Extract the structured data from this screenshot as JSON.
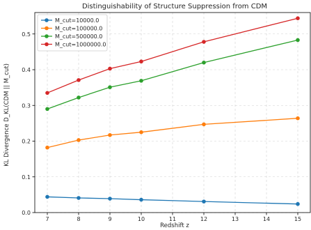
{
  "chart_data": {
    "type": "line",
    "title": "Distinguishability of Structure Suppression from CDM",
    "xlabel": "Redshift z",
    "ylabel": "KL Divergence D_KL(CDM || M_cut)",
    "xlim": [
      6.6,
      15.4
    ],
    "ylim": [
      0.0,
      0.56
    ],
    "xticks": [
      7,
      8,
      9,
      10,
      11,
      12,
      13,
      14,
      15
    ],
    "yticks": [
      0.0,
      0.1,
      0.2,
      0.3,
      0.4,
      0.5
    ],
    "ytick_labels": [
      "0.0",
      "0.1",
      "0.2",
      "0.3",
      "0.4",
      "0.5"
    ],
    "grid": true,
    "legend_position": "top-left",
    "x": [
      7,
      8,
      9,
      10,
      12,
      15
    ],
    "series": [
      {
        "name": "M_cut=10000.0",
        "color": "#1f77b4",
        "values": [
          0.044,
          0.041,
          0.039,
          0.036,
          0.031,
          0.024
        ]
      },
      {
        "name": "M_cut=100000.0",
        "color": "#ff7f0e",
        "values": [
          0.182,
          0.203,
          0.217,
          0.225,
          0.247,
          0.264
        ]
      },
      {
        "name": "M_cut=500000.0",
        "color": "#2ca02c",
        "values": [
          0.29,
          0.322,
          0.351,
          0.369,
          0.42,
          0.483
        ]
      },
      {
        "name": "M_cut=1000000.0",
        "color": "#d62728",
        "values": [
          0.335,
          0.371,
          0.403,
          0.423,
          0.478,
          0.544
        ]
      }
    ]
  }
}
